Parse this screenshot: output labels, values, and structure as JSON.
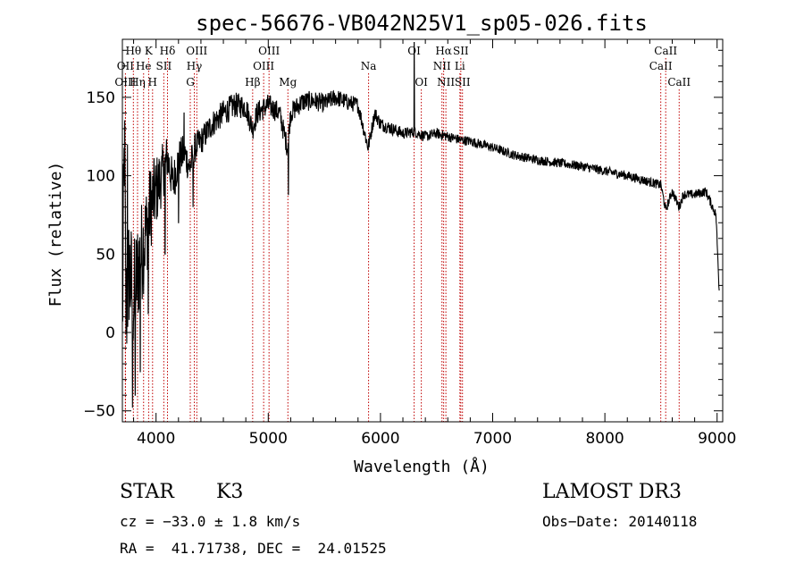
{
  "chart_data": {
    "type": "line",
    "title": "spec-56676-VB042N25V1_sp05-026.fits",
    "xlabel": "Wavelength (Å)",
    "ylabel": "Flux (relative)",
    "xlim": [
      3700,
      9050
    ],
    "ylim": [
      -57,
      187
    ],
    "x_ticks": [
      4000,
      5000,
      6000,
      7000,
      8000,
      9000
    ],
    "y_ticks": [
      -50,
      0,
      50,
      100,
      150
    ],
    "x_tick_labels": [
      "4000",
      "5000",
      "6000",
      "7000",
      "8000",
      "9000"
    ],
    "y_tick_labels": [
      "−50",
      "0",
      "50",
      "100",
      "150"
    ],
    "spectral_lines": [
      {
        "name": "Hθ",
        "wave": 3798,
        "row": 1
      },
      {
        "name": "OII",
        "wave": 3727,
        "row": 2
      },
      {
        "name": "OIII",
        "wave": 3727,
        "row": 3
      },
      {
        "name": "K",
        "wave": 3934,
        "row": 1
      },
      {
        "name": "He",
        "wave": 3889,
        "row": 2
      },
      {
        "name": "Hη",
        "wave": 3835,
        "row": 3
      },
      {
        "name": "Hδ",
        "wave": 4102,
        "row": 1
      },
      {
        "name": "SII",
        "wave": 4069,
        "row": 2
      },
      {
        "name": "H",
        "wave": 3969,
        "row": 3
      },
      {
        "name": "OIII",
        "wave": 4363,
        "row": 1
      },
      {
        "name": "Hγ",
        "wave": 4341,
        "row": 2
      },
      {
        "name": "G",
        "wave": 4305,
        "row": 3
      },
      {
        "name": "OIII",
        "wave": 5007,
        "row": 1
      },
      {
        "name": "OIII",
        "wave": 4959,
        "row": 2
      },
      {
        "name": "Hβ",
        "wave": 4861,
        "row": 3
      },
      {
        "name": "Mg",
        "wave": 5175,
        "row": 3
      },
      {
        "name": "Na",
        "wave": 5894,
        "row": 2
      },
      {
        "name": "OI",
        "wave": 6300,
        "row": 1
      },
      {
        "name": "OI",
        "wave": 6364,
        "row": 3
      },
      {
        "name": "Hα",
        "wave": 6563,
        "row": 1
      },
      {
        "name": "SII",
        "wave": 6716,
        "row": 1
      },
      {
        "name": "NII",
        "wave": 6548,
        "row": 2
      },
      {
        "name": "Li",
        "wave": 6708,
        "row": 2
      },
      {
        "name": "NII",
        "wave": 6583,
        "row": 3
      },
      {
        "name": "SII",
        "wave": 6731,
        "row": 3
      },
      {
        "name": "CaII",
        "wave": 8542,
        "row": 1
      },
      {
        "name": "CaII",
        "wave": 8498,
        "row": 2
      },
      {
        "name": "CaII",
        "wave": 8662,
        "row": 3
      }
    ],
    "series": [
      {
        "name": "spectrum",
        "anchors": [
          [
            3700,
            5
          ],
          [
            3720,
            135
          ],
          [
            3730,
            10
          ],
          [
            3760,
            40
          ],
          [
            3800,
            20
          ],
          [
            3850,
            45
          ],
          [
            3900,
            60
          ],
          [
            3950,
            80
          ],
          [
            4000,
            90
          ],
          [
            4050,
            100
          ],
          [
            4100,
            112
          ],
          [
            4150,
            95
          ],
          [
            4200,
            110
          ],
          [
            4250,
            115
          ],
          [
            4300,
            105
          ],
          [
            4350,
            118
          ],
          [
            4400,
            122
          ],
          [
            4500,
            133
          ],
          [
            4600,
            140
          ],
          [
            4700,
            145
          ],
          [
            4800,
            144
          ],
          [
            4860,
            130
          ],
          [
            4900,
            140
          ],
          [
            5000,
            145
          ],
          [
            5100,
            140
          ],
          [
            5170,
            118
          ],
          [
            5200,
            140
          ],
          [
            5300,
            147
          ],
          [
            5400,
            148
          ],
          [
            5500,
            146
          ],
          [
            5600,
            150
          ],
          [
            5700,
            147
          ],
          [
            5800,
            145
          ],
          [
            5890,
            118
          ],
          [
            5950,
            140
          ],
          [
            6000,
            133
          ],
          [
            6100,
            130
          ],
          [
            6200,
            127
          ],
          [
            6300,
            128
          ],
          [
            6400,
            125
          ],
          [
            6500,
            127
          ],
          [
            6600,
            125
          ],
          [
            6700,
            123
          ],
          [
            6800,
            122
          ],
          [
            7000,
            118
          ],
          [
            7200,
            113
          ],
          [
            7400,
            110
          ],
          [
            7600,
            108
          ],
          [
            7800,
            106
          ],
          [
            8000,
            103
          ],
          [
            8200,
            100
          ],
          [
            8400,
            96
          ],
          [
            8500,
            94
          ],
          [
            8542,
            78
          ],
          [
            8600,
            90
          ],
          [
            8662,
            80
          ],
          [
            8700,
            88
          ],
          [
            8800,
            88
          ],
          [
            8900,
            90
          ],
          [
            8990,
            75
          ],
          [
            9020,
            25
          ]
        ],
        "noise_amplitude": [
          [
            3700,
            45
          ],
          [
            3900,
            32
          ],
          [
            4100,
            15
          ],
          [
            4400,
            9
          ],
          [
            5500,
            6
          ],
          [
            6300,
            3.5
          ],
          [
            7000,
            3
          ],
          [
            9000,
            3
          ]
        ],
        "spikes": [
          [
            3720,
            135
          ],
          [
            3745,
            120
          ],
          [
            3790,
            -48
          ],
          [
            3815,
            -40
          ],
          [
            3860,
            -25
          ],
          [
            3930,
            12
          ],
          [
            4080,
            50
          ],
          [
            4200,
            70
          ],
          [
            4250,
            140
          ],
          [
            4330,
            80
          ],
          [
            5180,
            88
          ],
          [
            6300,
            185
          ]
        ]
      }
    ]
  },
  "info": {
    "object_class": "STAR",
    "subclass": "K3",
    "survey": "LAMOST DR3",
    "cz": "cz = −33.0 ± 1.8 km/s",
    "obs_date": "Obs−Date: 20140118",
    "coords": "RA =  41.71738, DEC =  24.01525"
  }
}
